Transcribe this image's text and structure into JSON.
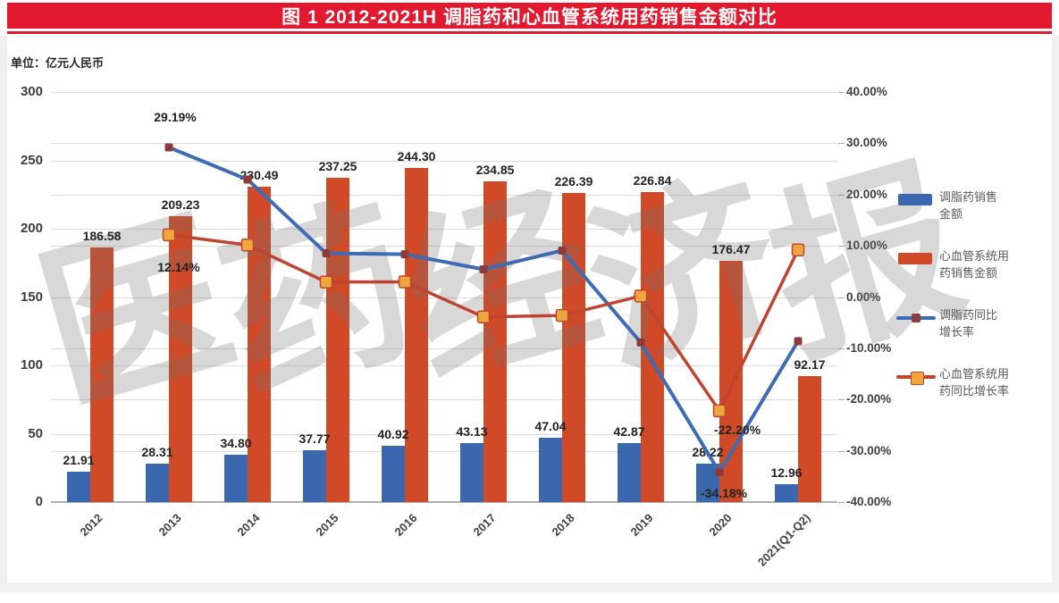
{
  "header": {
    "title": "图 1   2012-2021H 调脂药和心血管系统用药销售金额对比",
    "bar_color": "#E2182E",
    "unit_label": "单位：亿元人民币"
  },
  "watermark": {
    "text": "医药经济报",
    "chars": [
      "医",
      "药",
      "经",
      "济",
      "报"
    ]
  },
  "chart_data": {
    "type": "bar",
    "subtype": "bar+line combo, dual axis",
    "title": "图 1   2012-2021H 调脂药和心血管系统用药销售金额对比",
    "categories": [
      "2012",
      "2013",
      "2014",
      "2015",
      "2016",
      "2017",
      "2018",
      "2019",
      "2020",
      "2021(Q1-Q2)"
    ],
    "left_axis": {
      "unit": "亿元人民币",
      "min": 0,
      "max": 300,
      "step": 50
    },
    "right_axis": {
      "min": -40,
      "max": 40,
      "step": 10,
      "format": "0.00%"
    },
    "grid": "horizontal gridlines for both axes",
    "legend_position": "right",
    "series": [
      {
        "name": "调脂药销售金额",
        "type": "bar",
        "axis": "left",
        "color": "#3A67AD",
        "values": [
          21.91,
          28.31,
          34.8,
          37.77,
          40.92,
          43.13,
          47.04,
          42.87,
          28.22,
          12.96
        ],
        "labels": [
          "21.91",
          "28.31",
          "34.80",
          "37.77",
          "40.92",
          "43.13",
          "47.04",
          "42.87",
          "28.22",
          "12.96"
        ]
      },
      {
        "name": "心血管系统用药销售金额",
        "type": "bar",
        "axis": "left",
        "color": "#D04A28",
        "values": [
          186.58,
          209.23,
          230.49,
          237.25,
          244.3,
          234.85,
          226.39,
          226.84,
          176.47,
          92.17
        ],
        "labels": [
          "186.58",
          "209.23",
          "230.49",
          "237.25",
          "244.30",
          "234.85",
          "226.39",
          "226.84",
          "176.47",
          "92.17"
        ]
      },
      {
        "name": "调脂药同比增长率",
        "type": "line",
        "axis": "right",
        "color": "#3E6CB4",
        "marker": "square",
        "marker_color": "#8E3B3B",
        "marker_size": 9,
        "stroke_width": 4,
        "values": [
          null,
          29.19,
          22.93,
          8.53,
          8.34,
          5.4,
          9.07,
          -8.86,
          -34.18,
          -8.6
        ],
        "point_labels": [
          {
            "index": 1,
            "text": "29.19%",
            "dx": 7,
            "dy": -26
          },
          {
            "index": 8,
            "text": "-34.18%",
            "dx": 5,
            "dy": 7
          }
        ]
      },
      {
        "name": "心血管系统用药同比增长率",
        "type": "line",
        "axis": "right",
        "color": "#C04432",
        "marker": "square",
        "marker_color": "#EFA73D",
        "marker_size": 13,
        "stroke_width": 3.5,
        "values": [
          null,
          12.14,
          10.16,
          2.93,
          2.97,
          -3.87,
          -3.6,
          0.2,
          -22.2,
          9.2
        ],
        "point_labels": [
          {
            "index": 1,
            "text": "12.14%",
            "dx": 11,
            "dy": 20
          },
          {
            "index": 8,
            "text": "-22.20%",
            "dx": 20,
            "dy": 5
          }
        ]
      }
    ]
  },
  "legend": {
    "items": [
      {
        "label": "调脂药销售\n金额",
        "swatch": "bar",
        "color": "#3A67AD"
      },
      {
        "label": "心血管系统用\n药销售金额",
        "swatch": "bar",
        "color": "#D04A28"
      },
      {
        "label": "调脂药同比\n增长率",
        "swatch": "line",
        "color": "#3E6CB4",
        "marker_color": "#8E3B3B"
      },
      {
        "label": "心血管系统用\n药同比增长率",
        "swatch": "line",
        "color": "#C04432",
        "marker_color": "#EFA73D"
      }
    ]
  }
}
